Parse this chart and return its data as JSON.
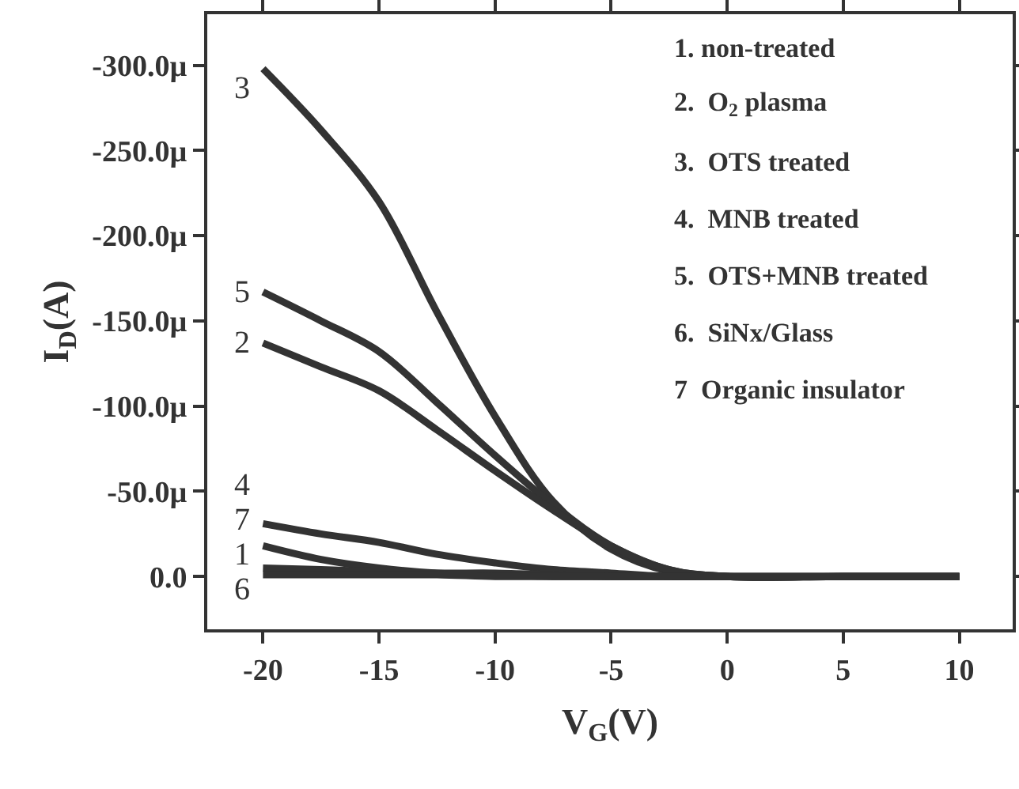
{
  "chart_data": {
    "type": "line",
    "xlabel": "V$_{G}$(V)",
    "ylabel": "I$_{D}$(A)",
    "x": [
      -20,
      -17.5,
      -15,
      -12.5,
      -10,
      -7.5,
      -5,
      -2.5,
      0,
      5,
      10
    ],
    "series": [
      {
        "name": "3",
        "color": "#333333",
        "values": [
          -298,
          -262,
          -220,
          -155,
          -94,
          -44,
          -16,
          -3,
          0,
          0,
          0
        ]
      },
      {
        "name": "5",
        "color": "#333333",
        "values": [
          -167,
          -150,
          -132,
          -102,
          -71,
          -42,
          -18,
          -4,
          0,
          0,
          0
        ]
      },
      {
        "name": "2",
        "color": "#333333",
        "values": [
          -137,
          -123,
          -109,
          -86,
          -62,
          -39,
          -18,
          -4,
          0,
          0,
          0
        ]
      },
      {
        "name": "4",
        "color": "#333333",
        "values": [
          -31,
          -25,
          -20,
          -13,
          -8,
          -4,
          -2,
          0,
          0,
          0,
          0
        ]
      },
      {
        "name": "7",
        "color": "#333333",
        "values": [
          -18,
          -10,
          -5,
          -2,
          -1,
          0,
          0,
          0,
          0,
          0,
          0
        ]
      },
      {
        "name": "1",
        "color": "#333333",
        "values": [
          -5,
          -4,
          -3,
          -2,
          -2,
          -1,
          0,
          0,
          0,
          0,
          0
        ]
      },
      {
        "name": "6",
        "color": "#333333",
        "values": [
          -1,
          -1,
          -1,
          -1,
          0,
          0,
          0,
          0,
          0,
          0,
          0
        ]
      }
    ],
    "xlim": [
      -22.4,
      12.3
    ],
    "xticks": [
      -20,
      -15,
      -10,
      -5,
      0,
      5,
      10
    ],
    "ylim": [
      31,
      -330
    ],
    "yticks": [
      {
        "value": 0,
        "label": "0.0"
      },
      {
        "value": -50,
        "label": "-50.0µ"
      },
      {
        "value": -100,
        "label": "-100.0µ"
      },
      {
        "value": -150,
        "label": "-150.0µ"
      },
      {
        "value": -200,
        "label": "-200.0µ"
      },
      {
        "value": -250,
        "label": "-250.0µ"
      },
      {
        "value": -300,
        "label": "-300.0µ"
      }
    ],
    "annotations": [
      "1. non-treated",
      "2.  O$_{2}$ plasma",
      "3.  OTS treated",
      "4.  MNB treated",
      "5.  OTS+MNB treated",
      "6.  SiNx/Glass",
      "7  Organic insulator"
    ],
    "grid": false,
    "legend": false,
    "marker": "none",
    "line_style": "solid"
  }
}
